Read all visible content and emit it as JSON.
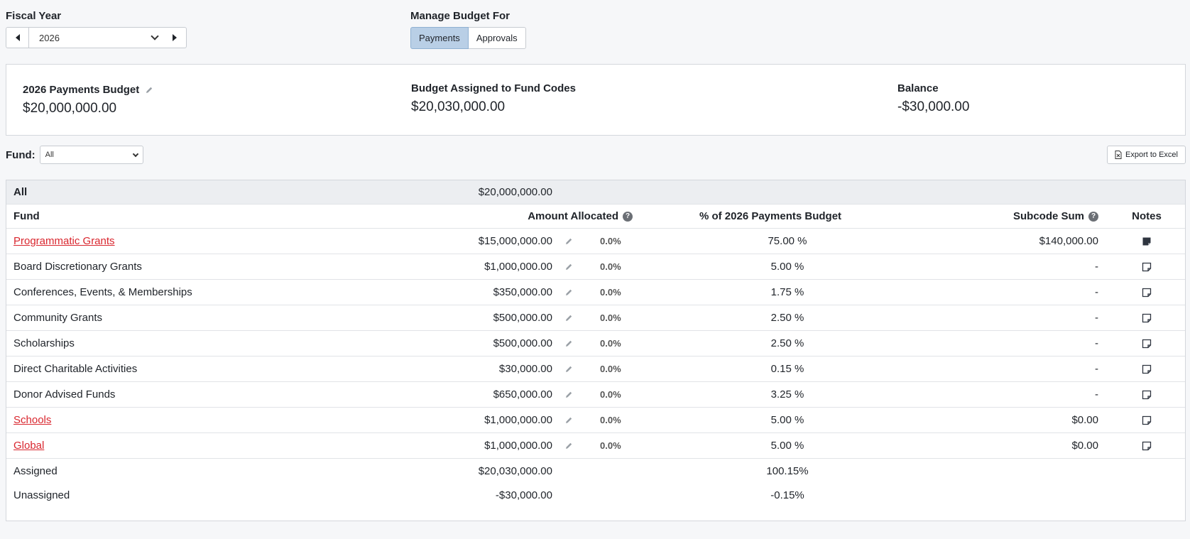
{
  "fiscal_year": {
    "label": "Fiscal Year",
    "selected": "2026"
  },
  "manage_budget": {
    "label": "Manage Budget For",
    "options": [
      "Payments",
      "Approvals"
    ],
    "active": "Payments"
  },
  "summary": {
    "budget_title": "2026 Payments Budget",
    "budget_value": "$20,000,000.00",
    "assigned_title": "Budget Assigned to Fund Codes",
    "assigned_value": "$20,030,000.00",
    "balance_title": "Balance",
    "balance_value": "-$30,000.00"
  },
  "filter": {
    "label": "Fund:",
    "selected": "All"
  },
  "export_label": "Export to Excel",
  "table": {
    "all_row": {
      "label": "All",
      "amount": "$20,000,000.00"
    },
    "headers": {
      "fund": "Fund",
      "amount": "Amount Allocated",
      "pct": "% of 2026 Payments Budget",
      "subcode": "Subcode Sum",
      "notes": "Notes"
    },
    "rows": [
      {
        "fund": "Programmatic Grants",
        "link": true,
        "amount": "$15,000,000.00",
        "pct0": "0.0%",
        "pct": "75.00 %",
        "subcode": "$140,000.00",
        "note_filled": true
      },
      {
        "fund": "Board Discretionary Grants",
        "link": false,
        "amount": "$1,000,000.00",
        "pct0": "0.0%",
        "pct": "5.00 %",
        "subcode": "-",
        "note_filled": false
      },
      {
        "fund": "Conferences, Events, & Memberships",
        "link": false,
        "amount": "$350,000.00",
        "pct0": "0.0%",
        "pct": "1.75 %",
        "subcode": "-",
        "note_filled": false
      },
      {
        "fund": "Community Grants",
        "link": false,
        "amount": "$500,000.00",
        "pct0": "0.0%",
        "pct": "2.50 %",
        "subcode": "-",
        "note_filled": false
      },
      {
        "fund": "Scholarships",
        "link": false,
        "amount": "$500,000.00",
        "pct0": "0.0%",
        "pct": "2.50 %",
        "subcode": "-",
        "note_filled": false
      },
      {
        "fund": "Direct Charitable Activities",
        "link": false,
        "amount": "$30,000.00",
        "pct0": "0.0%",
        "pct": "0.15 %",
        "subcode": "-",
        "note_filled": false
      },
      {
        "fund": "Donor Advised Funds",
        "link": false,
        "amount": "$650,000.00",
        "pct0": "0.0%",
        "pct": "3.25 %",
        "subcode": "-",
        "note_filled": false
      },
      {
        "fund": "Schools",
        "link": true,
        "amount": "$1,000,000.00",
        "pct0": "0.0%",
        "pct": "5.00 %",
        "subcode": "$0.00",
        "note_filled": false
      },
      {
        "fund": "Global",
        "link": true,
        "amount": "$1,000,000.00",
        "pct0": "0.0%",
        "pct": "5.00 %",
        "subcode": "$0.00",
        "note_filled": false
      }
    ],
    "assigned": {
      "label": "Assigned",
      "amount": "$20,030,000.00",
      "pct": "100.15%"
    },
    "unassigned": {
      "label": "Unassigned",
      "amount": "-$30,000.00",
      "pct": "-0.15%"
    }
  },
  "icons": {
    "prev": "caret-left-icon",
    "next": "caret-right-icon",
    "edit": "pencil-icon",
    "help": "help-circle-icon",
    "note": "note-icon",
    "export": "file-excel-icon"
  },
  "colors": {
    "link": "#d9262e",
    "active_segment": "#b9cfe6"
  }
}
